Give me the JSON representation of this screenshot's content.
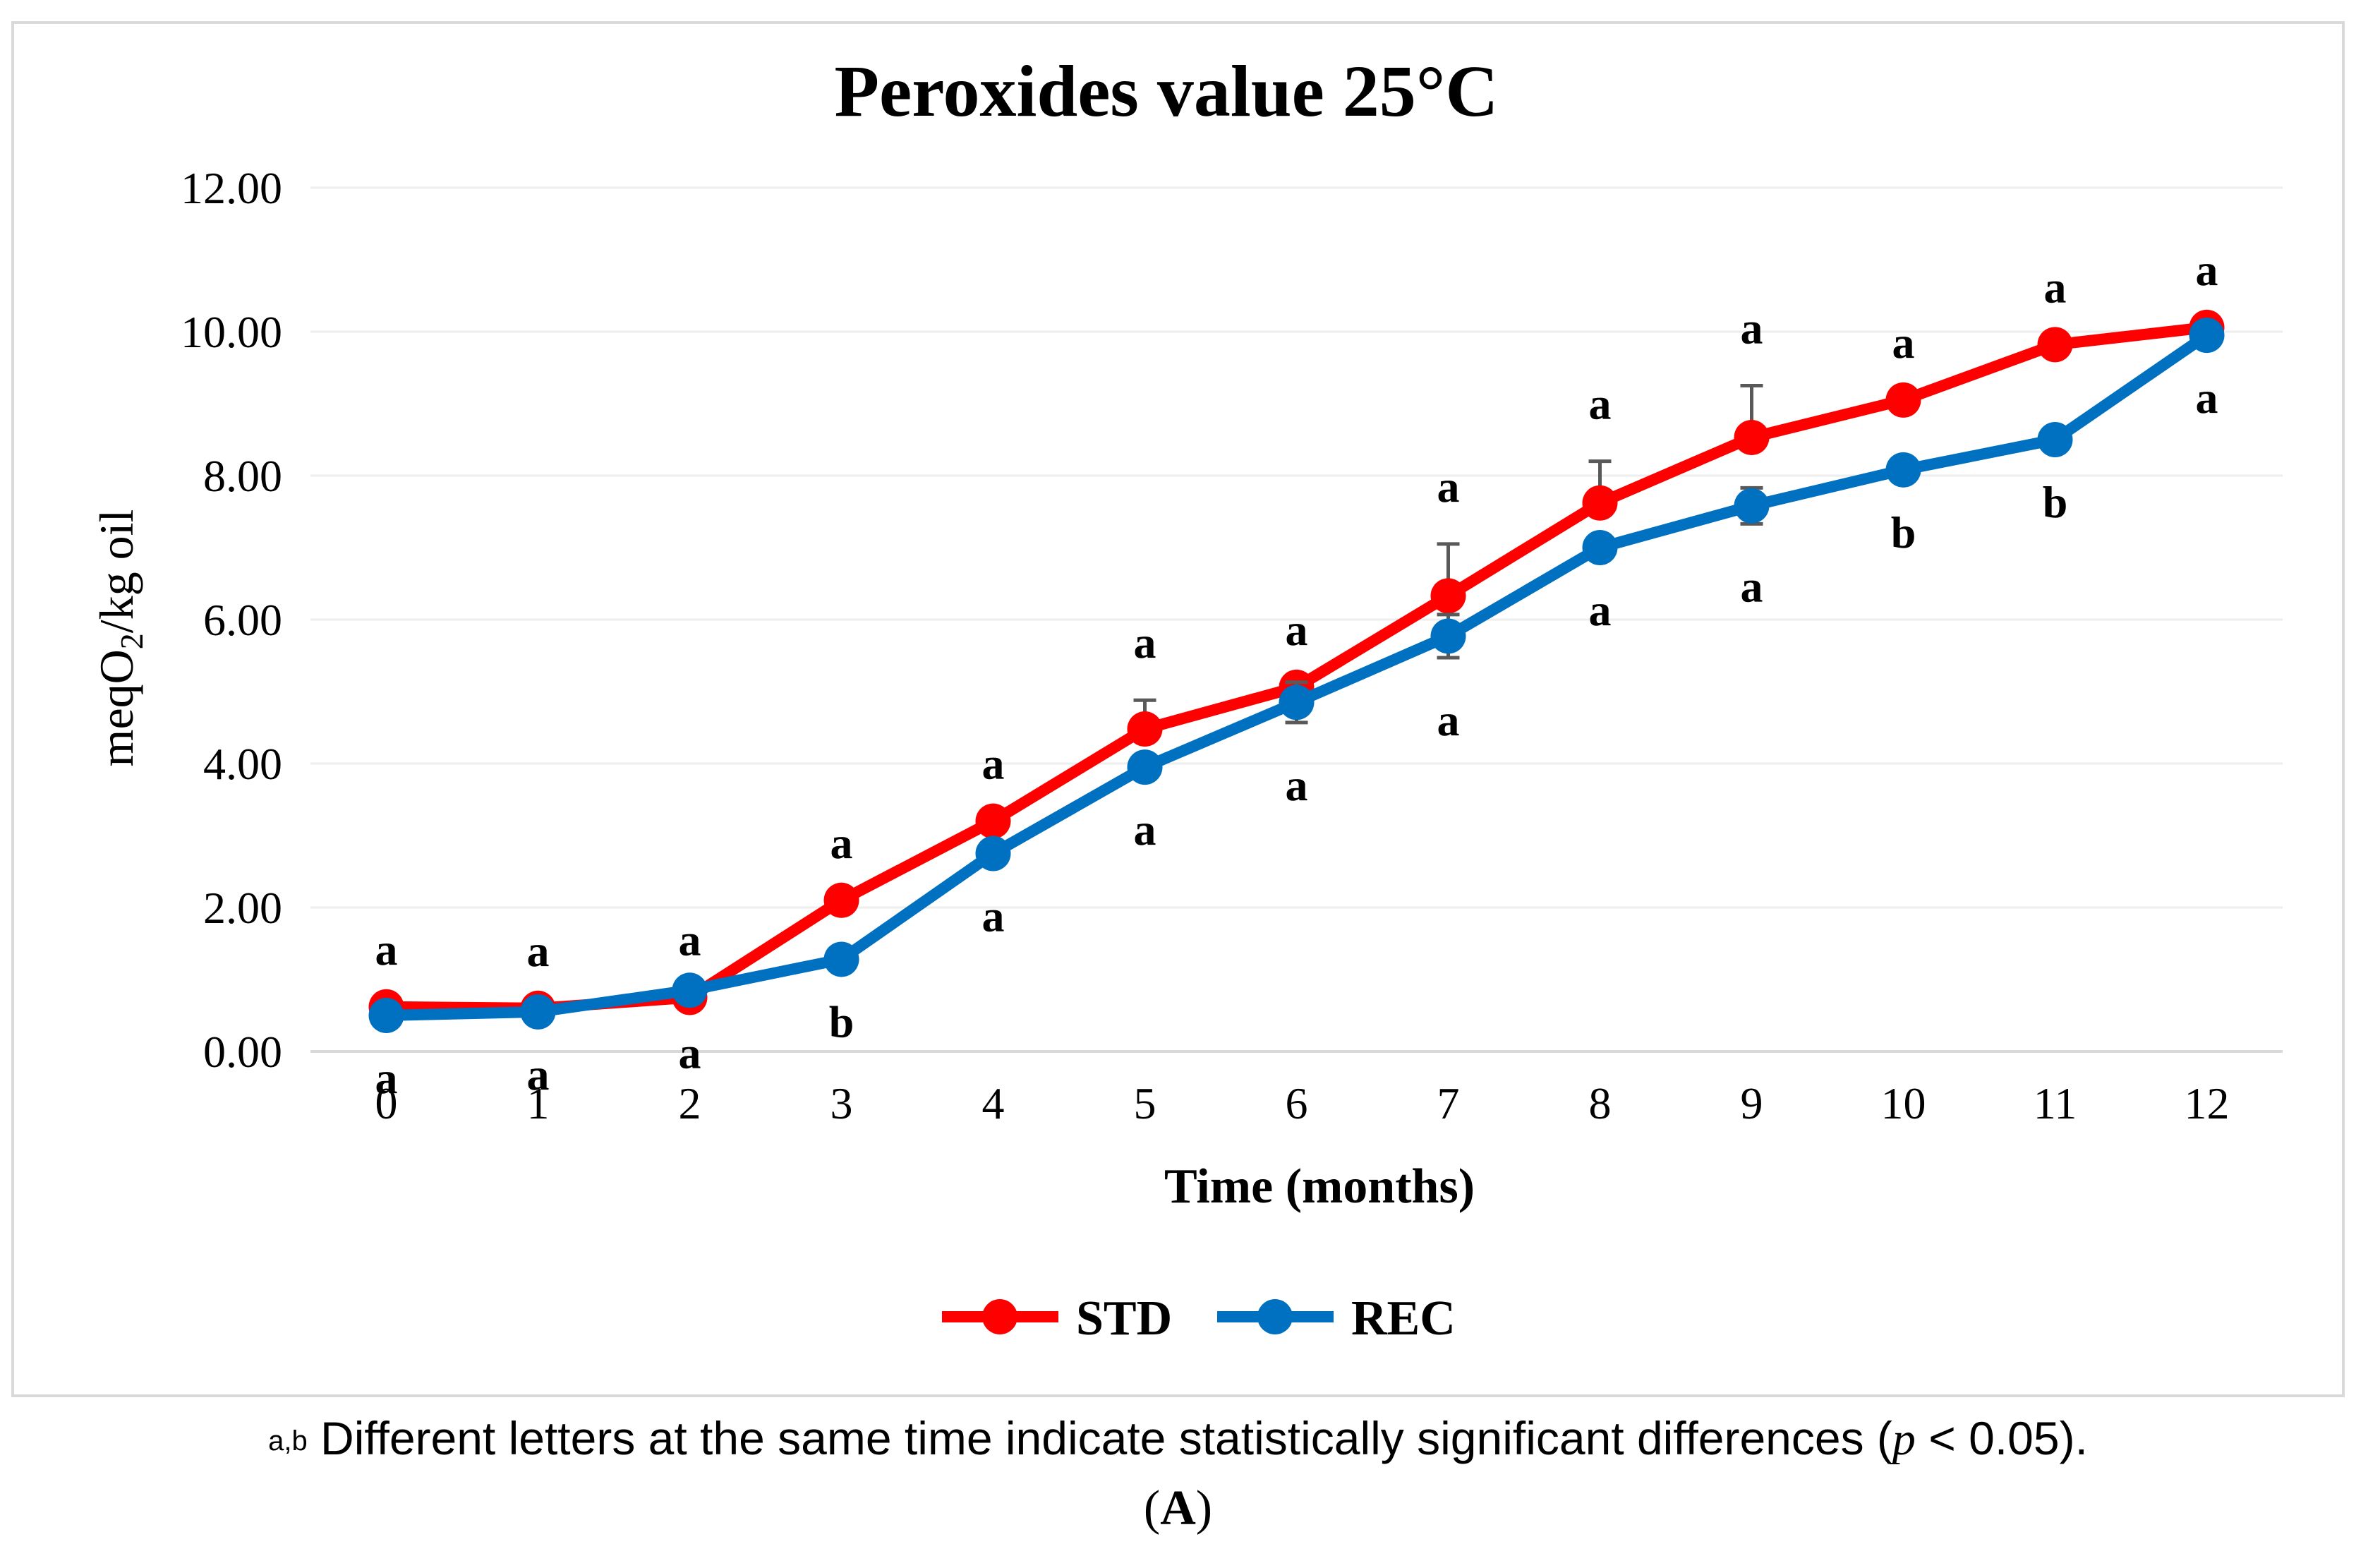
{
  "chart_data": {
    "type": "line",
    "title": "Peroxides value 25°C",
    "xlabel": "Time (months)",
    "ylabel_parts": {
      "pre": "meqO",
      "sub": "2",
      "post": "/kg oil"
    },
    "x": [
      0,
      1,
      2,
      3,
      4,
      5,
      6,
      7,
      8,
      9,
      10,
      11,
      12
    ],
    "ylim": [
      0,
      12
    ],
    "yticks": [
      "0.00",
      "2.00",
      "4.00",
      "6.00",
      "8.00",
      "10.00",
      "12.00"
    ],
    "grid": true,
    "legend_position": "bottom",
    "series": [
      {
        "name": "STD",
        "color": "#ff0000",
        "values": [
          0.62,
          0.6,
          0.75,
          2.1,
          3.2,
          4.48,
          5.06,
          6.33,
          7.62,
          8.53,
          9.05,
          9.82,
          10.06
        ],
        "error": [
          0,
          0,
          0,
          0,
          0,
          0.4,
          0,
          0.72,
          0.58,
          0.72,
          0,
          0,
          0
        ],
        "letters": [
          "a",
          "a",
          "a",
          "a",
          "a",
          "a",
          "a",
          "a",
          "a",
          "a",
          "a",
          "a",
          "a"
        ]
      },
      {
        "name": "REC",
        "color": "#0070c0",
        "values": [
          0.5,
          0.55,
          0.85,
          1.28,
          2.75,
          3.95,
          4.85,
          5.77,
          7.0,
          7.58,
          8.08,
          8.5,
          9.95
        ],
        "error": [
          0,
          0,
          0,
          0,
          0,
          0,
          0.28,
          0.3,
          0,
          0.25,
          0,
          0,
          0
        ],
        "letters": [
          "a",
          "a",
          "a",
          "b",
          "a",
          "a",
          "a",
          "a",
          "a",
          "a",
          "b",
          "b",
          "a"
        ]
      }
    ]
  },
  "footnote": {
    "sup": "a,b",
    "text": " Different letters at the same time indicate statistically significant differences (",
    "p": "p",
    "tail": " < 0.05)."
  },
  "panel_label": {
    "open": "(",
    "letter": "A",
    "close": ")"
  }
}
